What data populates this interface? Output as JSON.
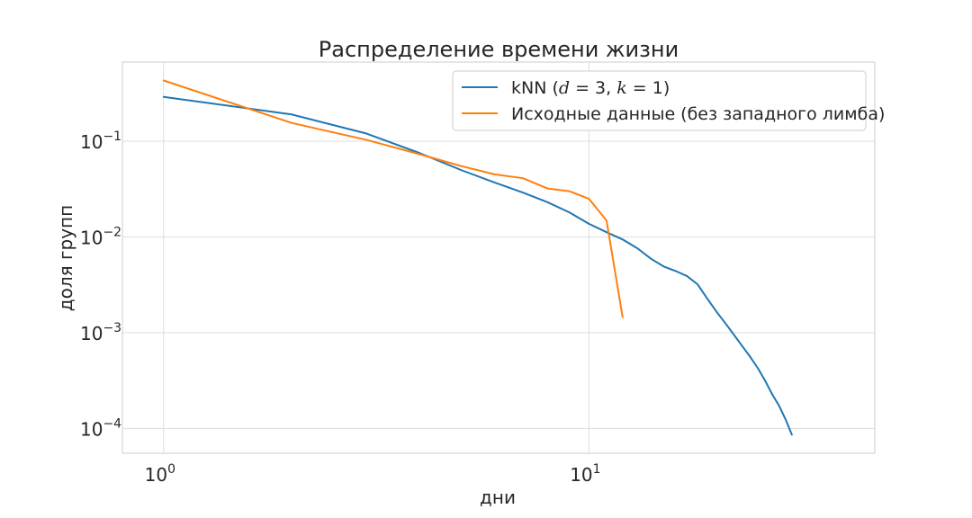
{
  "chart_data": {
    "type": "line",
    "title": "Распределение времени жизни",
    "xlabel": "дни",
    "ylabel": "доля групп",
    "xscale": "log",
    "yscale": "log",
    "xlim": [
      0.8,
      47
    ],
    "ylim": [
      5.5e-05,
      0.67
    ],
    "grid": true,
    "x_ticks": [
      {
        "value": 1,
        "base": "10",
        "exp": "0"
      },
      {
        "value": 10,
        "base": "10",
        "exp": "1"
      }
    ],
    "y_ticks": [
      {
        "value": 0.1,
        "base": "10",
        "exp": "−1"
      },
      {
        "value": 0.01,
        "base": "10",
        "exp": "−2"
      },
      {
        "value": 0.001,
        "base": "10",
        "exp": "−3"
      },
      {
        "value": 0.0001,
        "base": "10",
        "exp": "−4"
      }
    ],
    "legend_position": "top-right",
    "series": [
      {
        "name": "kNN (d = 3, k = 1)",
        "legend_parts": {
          "prefix": "kNN (",
          "math": "d",
          "eq1": " = 3, ",
          "math2": "k",
          "eq2": " = 1)"
        },
        "color": "#1f77b4",
        "x": [
          1,
          2,
          3,
          4,
          5,
          6,
          7,
          8,
          9,
          10,
          11,
          12,
          13,
          14,
          15,
          16,
          17,
          18,
          19,
          20,
          21,
          22,
          23,
          24,
          25,
          26,
          27,
          28,
          29,
          30
        ],
        "y": [
          0.29,
          0.19,
          0.12,
          0.075,
          0.05,
          0.037,
          0.029,
          0.023,
          0.018,
          0.0137,
          0.0112,
          0.0094,
          0.0076,
          0.0059,
          0.0049,
          0.0044,
          0.0039,
          0.0032,
          0.00225,
          0.00163,
          0.00123,
          0.00093,
          0.00071,
          0.00055,
          0.00042,
          0.00031,
          0.000225,
          0.000172,
          0.000124,
          8.6e-05
        ]
      },
      {
        "name": "Исходные данные (без западного лимба)",
        "color": "#ff7f0e",
        "x": [
          1,
          2,
          3,
          4,
          5,
          6,
          7,
          8,
          9,
          10,
          11,
          12
        ],
        "y": [
          0.43,
          0.155,
          0.103,
          0.073,
          0.055,
          0.045,
          0.041,
          0.032,
          0.03,
          0.025,
          0.0148,
          0.00145
        ]
      }
    ]
  }
}
